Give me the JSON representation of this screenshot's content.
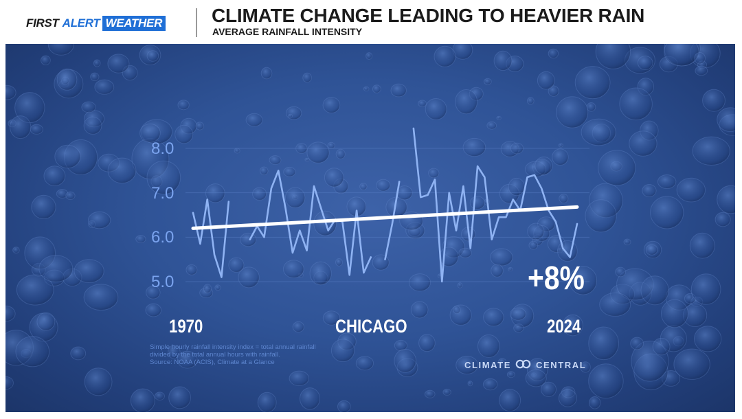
{
  "header": {
    "brand": {
      "part1": "FIRST",
      "part2": "ALERT",
      "part3": "WEATHER"
    },
    "title": "CLIMATE CHANGE LEADING TO HEAVIER RAIN",
    "subtitle": "AVERAGE RAINFALL INTENSITY"
  },
  "chart_data": {
    "type": "line",
    "title": "CLIMATE CHANGE LEADING TO HEAVIER RAIN",
    "subtitle": "AVERAGE RAINFALL INTENSITY",
    "xlabel": "",
    "ylabel": "",
    "x_range": [
      1970,
      2024
    ],
    "ylim": [
      4.7,
      8.5
    ],
    "y_ticks": [
      "5.0",
      "6.0",
      "7.0",
      "8.0"
    ],
    "x_labels": {
      "start": "1970",
      "end": "2024"
    },
    "location": "CHICAGO",
    "grid": true,
    "series": [
      {
        "values": [
          [
            1970,
            6.55
          ],
          [
            1971,
            5.85
          ],
          [
            1972,
            6.85
          ],
          [
            1973,
            5.6
          ],
          [
            1974,
            5.1
          ],
          [
            1975,
            6.8
          ],
          [
            1978,
            5.95
          ],
          [
            1979,
            6.25
          ],
          [
            1980,
            6.0
          ],
          [
            1981,
            7.1
          ],
          [
            1982,
            7.5
          ],
          [
            1983,
            6.65
          ],
          [
            1984,
            5.65
          ],
          [
            1985,
            6.15
          ],
          [
            1986,
            5.7
          ],
          [
            1987,
            7.15
          ],
          [
            1988,
            6.65
          ],
          [
            1989,
            6.15
          ],
          [
            1990,
            6.4
          ],
          [
            1991,
            6.35
          ],
          [
            1992,
            5.15
          ],
          [
            1993,
            6.6
          ],
          [
            1994,
            5.2
          ],
          [
            1995,
            5.55
          ],
          [
            1997,
            5.5
          ],
          [
            1998,
            6.3
          ],
          [
            1999,
            7.25
          ],
          [
            2001,
            8.45
          ],
          [
            2002,
            6.9
          ],
          [
            2003,
            6.95
          ],
          [
            2004,
            7.3
          ],
          [
            2005,
            5.0
          ],
          [
            2006,
            7.0
          ],
          [
            2007,
            6.15
          ],
          [
            2008,
            7.15
          ],
          [
            2009,
            5.75
          ],
          [
            2010,
            7.6
          ],
          [
            2011,
            7.35
          ],
          [
            2012,
            5.95
          ],
          [
            2013,
            6.45
          ],
          [
            2014,
            6.45
          ],
          [
            2015,
            6.85
          ],
          [
            2016,
            6.6
          ],
          [
            2017,
            7.35
          ],
          [
            2018,
            7.4
          ],
          [
            2019,
            7.1
          ],
          [
            2020,
            6.6
          ],
          [
            2021,
            6.35
          ],
          [
            2022,
            5.75
          ],
          [
            2023,
            5.55
          ],
          [
            2024,
            6.3
          ]
        ]
      }
    ],
    "trend": {
      "start": [
        1970,
        6.2
      ],
      "end": [
        2024,
        6.68
      ]
    },
    "annotation": "+8%"
  },
  "footnote": {
    "line1": "Simple hourly rainfall intensity index = total annual rainfall",
    "line2": "divided by the total annual hours with rainfall.",
    "line3": "Source: NOAA (ACIS), Climate at a Glance"
  },
  "credit": {
    "part1": "CLIMATE",
    "part2": "CENTRAL"
  },
  "colors": {
    "panel_bg": "#2f5396",
    "data_line": "#8fb3f3",
    "trend_line": "#ffffff",
    "tick_text": "#7aa3ee",
    "brand_blue": "#1f6fd6"
  }
}
